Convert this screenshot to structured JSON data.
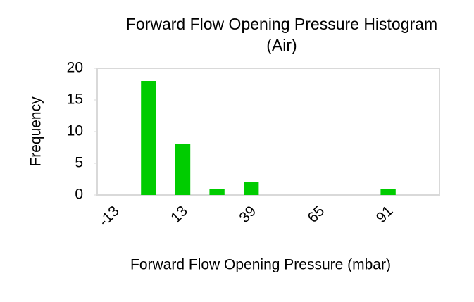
{
  "chart_data": {
    "type": "bar",
    "title": [
      "Forward Flow Opening Pressure Histogram",
      "(Air)"
    ],
    "x_label": "Forward Flow Opening Pressure (mbar)",
    "y_label": "Frequency",
    "categories": [
      "-13",
      null,
      "13",
      null,
      "39",
      null,
      "65",
      null,
      "91",
      null
    ],
    "values": [
      0,
      18,
      8,
      1,
      2,
      0,
      0,
      0,
      1,
      0
    ],
    "color": "#00cc00",
    "ylim": [
      0,
      20
    ],
    "yticks": [
      0,
      5,
      10,
      15,
      20
    ],
    "grid": false
  }
}
